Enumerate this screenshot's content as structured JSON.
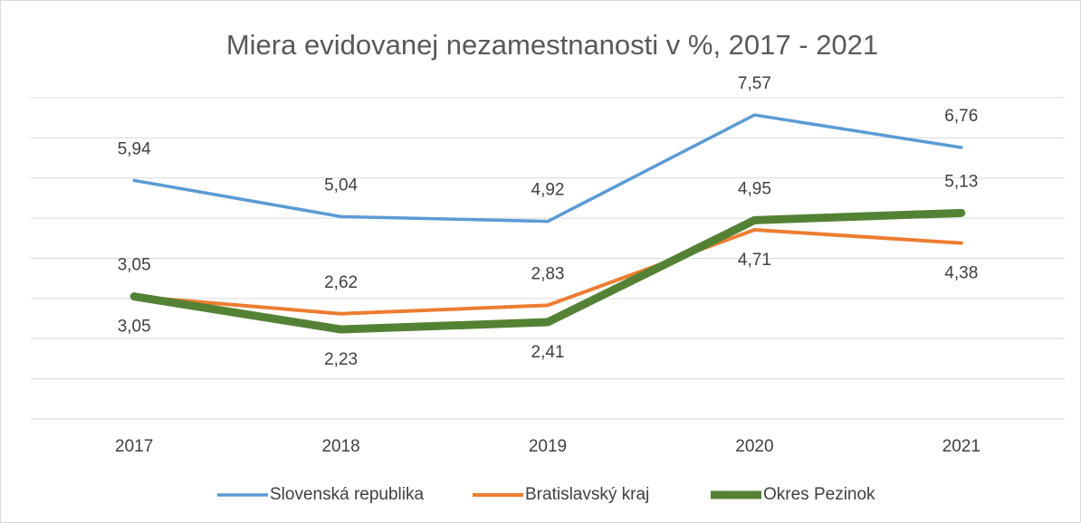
{
  "chart_data": {
    "type": "line",
    "title": "Miera evidovanej nezamestnanosti v %, 2017 - 2021",
    "categories": [
      "2017",
      "2018",
      "2019",
      "2020",
      "2021"
    ],
    "series": [
      {
        "name": "Slovenská republika",
        "color": "#5b9bd5",
        "values": [
          5.94,
          5.04,
          4.92,
          7.57,
          6.76
        ],
        "value_labels": [
          "5,94",
          "5,04",
          "4,92",
          "7,57",
          "6,76"
        ]
      },
      {
        "name": "Bratislavský kraj",
        "color": "#ed7d31",
        "values": [
          3.05,
          2.62,
          2.83,
          4.71,
          4.38
        ],
        "value_labels": [
          "3,05",
          "2,62",
          "2,83",
          "4,71",
          "4,38"
        ]
      },
      {
        "name": "Okres Pezinok",
        "color": "#548235",
        "values": [
          3.05,
          2.23,
          2.41,
          4.95,
          5.13
        ],
        "value_labels": [
          "3,05",
          "2,23",
          "2,41",
          "4,95",
          "5,13"
        ]
      }
    ],
    "ylim": [
      0,
      8
    ],
    "yticks": [
      0,
      1,
      2,
      3,
      4,
      5,
      6,
      7,
      8
    ],
    "show_ytick_labels": false,
    "grid": true,
    "legend": "bottom"
  }
}
